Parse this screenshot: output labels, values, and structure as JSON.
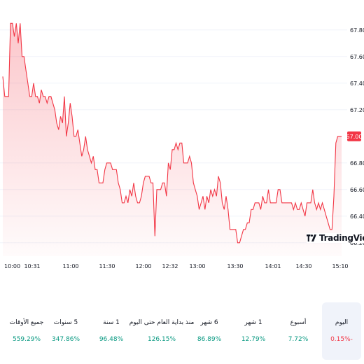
{
  "chart_data": {
    "type": "area",
    "x_tick_labels": [
      "10:00",
      "10:31",
      "11:00",
      "11:30",
      "12:00",
      "12:32",
      "13:00",
      "13:30",
      "14:01",
      "14:30",
      "15:10"
    ],
    "y_tick_labels": [
      "67.80",
      "67.60",
      "67.40",
      "67.20",
      "66.80",
      "66.60",
      "66.40",
      "66.20"
    ],
    "ylim": [
      66.12,
      67.92
    ],
    "last_value_label": "67.00",
    "series": [
      {
        "values": [
          67.45,
          67.3,
          67.3,
          67.3,
          67.85,
          67.85,
          67.75,
          67.85,
          67.7,
          67.85,
          67.6,
          67.6,
          67.5,
          67.4,
          67.3,
          67.3,
          67.4,
          67.3,
          67.3,
          67.25,
          67.35,
          67.3,
          67.3,
          67.25,
          67.3,
          67.3,
          67.25,
          67.2,
          67.1,
          67.05,
          67.15,
          67.1,
          67.3,
          67.0,
          67.1,
          67.25,
          67.15,
          67.0,
          67.0,
          67.05,
          66.95,
          66.85,
          66.9,
          67.0,
          66.9,
          66.85,
          66.8,
          66.85,
          66.75,
          66.75,
          66.65,
          66.65,
          66.65,
          66.75,
          66.8,
          66.8,
          66.8,
          66.75,
          66.75,
          66.75,
          66.65,
          66.6,
          66.5,
          66.5,
          66.55,
          66.5,
          66.6,
          66.55,
          66.65,
          66.55,
          66.5,
          66.5,
          66.55,
          66.65,
          66.7,
          66.7,
          66.7,
          66.65,
          66.65,
          66.25,
          66.6,
          66.6,
          66.6,
          66.65,
          66.65,
          66.55,
          66.8,
          66.75,
          66.9,
          66.9,
          66.95,
          66.9,
          66.95,
          66.95,
          66.8,
          66.8,
          66.8,
          66.85,
          66.8,
          66.65,
          66.6,
          66.55,
          66.45,
          66.5,
          66.55,
          66.45,
          66.55,
          66.5,
          66.6,
          66.55,
          66.6,
          66.55,
          66.7,
          66.65,
          66.5,
          66.45,
          66.55,
          66.45,
          66.3,
          66.3,
          66.3,
          66.3,
          66.2,
          66.2,
          66.25,
          66.3,
          66.3,
          66.35,
          66.35,
          66.45,
          66.45,
          66.5,
          66.5,
          66.5,
          66.45,
          66.55,
          66.5,
          66.5,
          66.6,
          66.5,
          66.5,
          66.5,
          66.5,
          66.6,
          66.6,
          66.5,
          66.5,
          66.5,
          66.5,
          66.5,
          66.5,
          66.45,
          66.5,
          66.45,
          66.45,
          66.5,
          66.45,
          66.4,
          66.5,
          66.5,
          66.5,
          66.6,
          66.5,
          66.45,
          66.5,
          66.45,
          66.5,
          66.45,
          66.4,
          66.35,
          66.3,
          66.3,
          66.55,
          66.95,
          67.0,
          67.0,
          67.0
        ]
      }
    ]
  },
  "watermark": {
    "text": "TradingView",
    "icon": "tradingview-logo-icon"
  },
  "colors": {
    "line": "#f23645",
    "positive": "#089981",
    "negative": "#f23645",
    "grid": "#f0f3fa"
  },
  "performance": [
    {
      "label": "جميع الأوقات",
      "value": "559.29%",
      "trend": "pos"
    },
    {
      "label": "5 سنوات",
      "value": "347.86%",
      "trend": "pos"
    },
    {
      "label": "1 سنة",
      "value": "96.48%",
      "trend": "pos"
    },
    {
      "label": "منذ بداية العام حتى اليوم",
      "value": "126.15%",
      "trend": "pos"
    },
    {
      "label": "6 شهر",
      "value": "86.89%",
      "trend": "pos"
    },
    {
      "label": "1 شهر",
      "value": "12.79%",
      "trend": "pos"
    },
    {
      "label": "أسبوع",
      "value": "7.72%",
      "trend": "pos"
    },
    {
      "label": "اليوم",
      "value": "0.15%-",
      "trend": "neg"
    }
  ]
}
